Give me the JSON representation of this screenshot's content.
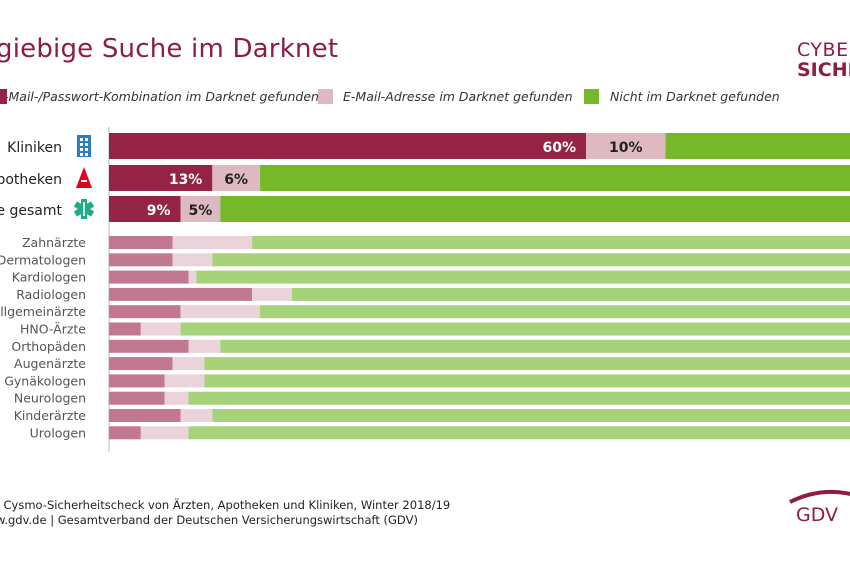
{
  "title": "giebige Suche im Darknet",
  "brand": {
    "line1": "CYBER",
    "line2": "SICHER"
  },
  "legend": [
    {
      "label": "-Mail-/Passwort-Kombination im Darknet gefunden",
      "color": "#952346"
    },
    {
      "label": "E-Mail-Adresse im Darknet gefunden",
      "color": "#dfb9c2"
    },
    {
      "label": "Nicht im Darknet gefunden",
      "color": "#76b82a"
    }
  ],
  "colors": {
    "main": [
      "#952346",
      "#dfb9c2",
      "#76b82a"
    ],
    "light": [
      "#c17890",
      "#ebd3da",
      "#a6d27a"
    ],
    "axis": "#bbbbbb"
  },
  "chart_data": {
    "type": "bar",
    "orientation": "horizontal",
    "stacked": true,
    "series_names": [
      "-Mail-/Passwort-Kombination im Darknet gefunden",
      "E-Mail-Adresse im Darknet gefunden",
      "Nicht im Darknet gefunden"
    ],
    "main_groups": [
      {
        "label": "Kliniken",
        "icon": "hospital-icon",
        "values": [
          60,
          10,
          30
        ],
        "value_labels": [
          "60%",
          "10%",
          "30"
        ]
      },
      {
        "label": "potheken",
        "icon": "pharmacy-icon",
        "values": [
          13,
          6,
          80
        ],
        "value_labels": [
          "13%",
          "6%",
          "80"
        ]
      },
      {
        "label": "e gesamt",
        "icon": "medical-star-icon",
        "values": [
          9,
          5,
          86
        ],
        "value_labels": [
          "9%",
          "5%",
          "86"
        ]
      }
    ],
    "categories": [
      "Zahnärzte",
      "Dermatologen",
      "Kardiologen",
      "Radiologen",
      "llgemeinärzte",
      "HNO-Ärzte",
      "Orthopäden",
      "Augenärzte",
      "Gynäkologen",
      "Neurologen",
      "Kinderärzte",
      "Urologen"
    ],
    "values": [
      [
        8,
        10,
        82
      ],
      [
        8,
        5,
        87
      ],
      [
        10,
        1,
        89
      ],
      [
        18,
        5,
        77
      ],
      [
        9,
        10,
        81
      ],
      [
        4,
        5,
        91
      ],
      [
        10,
        4,
        86
      ],
      [
        8,
        4,
        88
      ],
      [
        7,
        5,
        88
      ],
      [
        7,
        3,
        90
      ],
      [
        9,
        4,
        87
      ],
      [
        4,
        6,
        90
      ]
    ],
    "xlim": [
      0,
      100
    ]
  },
  "footer": {
    "line1": ": Cysmo-Sicherheitscheck von Ärzten, Apotheken und Kliniken, Winter 2018/19",
    "line2": "w.gdv.de | Gesamtverband der Deutschen Versicherungswirtschaft (GDV)"
  },
  "gdv_logo": {
    "text": "GDV"
  }
}
